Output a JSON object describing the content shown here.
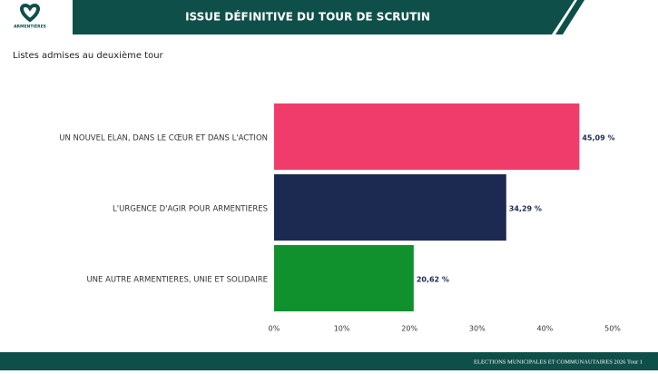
{
  "header": {
    "title": "ISSUE DÉFINITIVE DU TOUR DE SCRUTIN",
    "logo_text": "ARMENTIÈRES"
  },
  "footer": "ELECTIONS MUNICIPALES ET COMMUNAUTAIRES 2026 Tour 1",
  "chart_data": {
    "type": "bar",
    "orientation": "horizontal",
    "title": "Listes admises au deuxième tour",
    "categories": [
      "UN NOUVEL ELAN, DANS LE CŒUR ET DANS L'ACTION",
      "L'URGENCE D'AGIR POUR ARMENTIERES",
      "UNE AUTRE ARMENTIERES, UNIE ET SOLIDAIRE"
    ],
    "values": [
      45.09,
      34.29,
      20.62
    ],
    "value_labels": [
      "45,09 %",
      "34,29 %",
      "20,62 %"
    ],
    "colors": [
      "#f03c6a",
      "#1c2a52",
      "#11912d"
    ],
    "xlim": [
      0,
      50
    ],
    "xticks": [
      {
        "value": 0,
        "label": "0%"
      },
      {
        "value": 10,
        "label": "10%"
      },
      {
        "value": 20,
        "label": "20%"
      },
      {
        "value": 30,
        "label": "30%"
      },
      {
        "value": 40,
        "label": "40%"
      },
      {
        "value": 50,
        "label": "50%"
      }
    ],
    "grid": false
  }
}
